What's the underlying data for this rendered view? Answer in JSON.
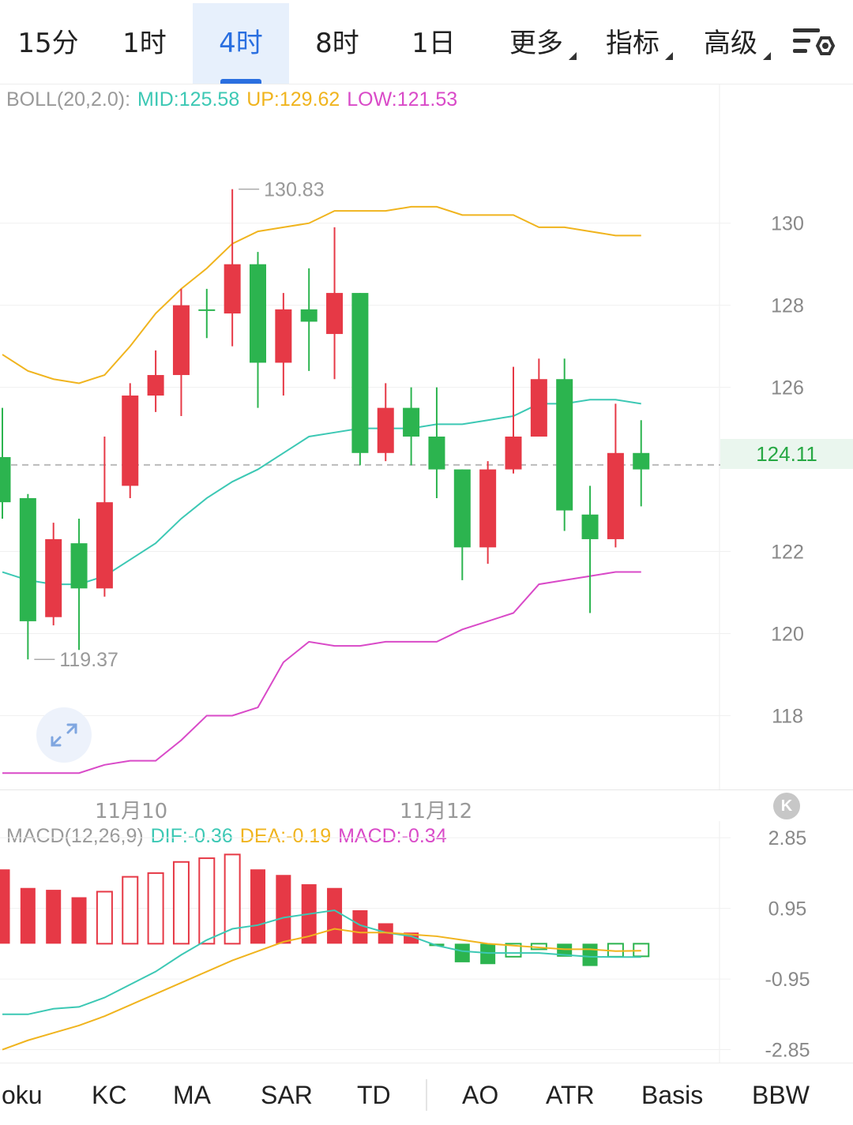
{
  "toolbar": {
    "tabs": [
      {
        "label": "15分"
      },
      {
        "label": "1时"
      },
      {
        "label": "4时",
        "active": true
      },
      {
        "label": "8时"
      },
      {
        "label": "1日"
      },
      {
        "label": "更多",
        "dropdown": true
      },
      {
        "label": "指标",
        "dropdown": true
      },
      {
        "label": "高级",
        "dropdown": true
      }
    ],
    "settings_icon": "chart-settings-icon"
  },
  "boll_legend": {
    "name": "BOLL(20,2.0):",
    "mid": "MID:125.58",
    "up": "UP:129.62",
    "low": "LOW:121.53"
  },
  "macd_legend": {
    "name": "MACD(12,26,9)",
    "dif": "DIF:-0.36",
    "dea": "DEA:-0.19",
    "macd": "MACD:-0.34"
  },
  "price_axis": [
    "130",
    "128",
    "126",
    "124.11",
    "122",
    "120",
    "118"
  ],
  "current_price": "124.11",
  "macd_axis": [
    "2.85",
    "0.95",
    "-0.95",
    "-2.85"
  ],
  "date_labels": [
    "11月10",
    "11月12"
  ],
  "indicators": [
    "oku",
    "KC",
    "MA",
    "SAR",
    "TD",
    "AO",
    "ATR",
    "Basis",
    "BBW"
  ],
  "colors": {
    "up": "#e63946",
    "down": "#2cb44f",
    "mid": "#3cc8b4",
    "upper": "#f0b41e",
    "lower": "#d94ac8",
    "accent": "#2a6fe0"
  },
  "chart_data": [
    {
      "type": "candlestick",
      "title": "BOLL(20,2.0)",
      "ylim": [
        116.2,
        133.4
      ],
      "yticks": [
        130,
        128,
        126,
        122,
        120,
        118
      ],
      "current_price": 124.11,
      "annotations": [
        {
          "label": "130.83",
          "value": 130.83
        },
        {
          "label": "119.37",
          "value": 119.37
        }
      ],
      "candles": [
        {
          "o": 124.3,
          "c": 123.2,
          "h": 125.5,
          "l": 122.8
        },
        {
          "o": 123.3,
          "c": 120.3,
          "h": 123.4,
          "l": 119.37
        },
        {
          "o": 120.4,
          "c": 122.3,
          "h": 122.7,
          "l": 120.2
        },
        {
          "o": 122.2,
          "c": 121.1,
          "h": 122.8,
          "l": 119.6
        },
        {
          "o": 121.1,
          "c": 123.2,
          "h": 124.8,
          "l": 120.9
        },
        {
          "o": 123.6,
          "c": 125.8,
          "h": 126.1,
          "l": 123.3
        },
        {
          "o": 125.8,
          "c": 126.3,
          "h": 126.9,
          "l": 125.4
        },
        {
          "o": 126.3,
          "c": 128.0,
          "h": 128.4,
          "l": 125.3
        },
        {
          "o": 127.9,
          "c": 127.9,
          "h": 128.4,
          "l": 127.2
        },
        {
          "o": 127.8,
          "c": 129.0,
          "h": 130.83,
          "l": 127.0
        },
        {
          "o": 129.0,
          "c": 126.6,
          "h": 129.3,
          "l": 125.5
        },
        {
          "o": 126.6,
          "c": 127.9,
          "h": 128.3,
          "l": 125.8
        },
        {
          "o": 127.9,
          "c": 127.6,
          "h": 128.9,
          "l": 126.4
        },
        {
          "o": 127.3,
          "c": 128.3,
          "h": 129.9,
          "l": 126.2
        },
        {
          "o": 128.3,
          "c": 124.4,
          "h": 128.3,
          "l": 124.1
        },
        {
          "o": 124.4,
          "c": 125.5,
          "h": 126.1,
          "l": 124.2
        },
        {
          "o": 125.5,
          "c": 124.8,
          "h": 126.0,
          "l": 124.1
        },
        {
          "o": 124.8,
          "c": 124.0,
          "h": 126.0,
          "l": 123.3
        },
        {
          "o": 124.0,
          "c": 122.1,
          "h": 124.0,
          "l": 121.3
        },
        {
          "o": 122.1,
          "c": 124.0,
          "h": 124.2,
          "l": 121.7
        },
        {
          "o": 124.0,
          "c": 124.8,
          "h": 126.5,
          "l": 123.9
        },
        {
          "o": 124.8,
          "c": 126.2,
          "h": 126.7,
          "l": 124.8
        },
        {
          "o": 126.2,
          "c": 123.0,
          "h": 126.7,
          "l": 122.5
        },
        {
          "o": 122.9,
          "c": 122.3,
          "h": 123.6,
          "l": 120.5
        },
        {
          "o": 122.3,
          "c": 124.4,
          "h": 125.6,
          "l": 122.1
        },
        {
          "o": 124.4,
          "c": 124.0,
          "h": 125.2,
          "l": 123.1
        }
      ],
      "series": [
        {
          "name": "UP",
          "color": "#f0b41e",
          "values": [
            126.8,
            126.4,
            126.2,
            126.1,
            126.3,
            127.0,
            127.8,
            128.4,
            128.9,
            129.5,
            129.8,
            129.9,
            130.0,
            130.3,
            130.3,
            130.3,
            130.4,
            130.4,
            130.2,
            130.2,
            130.2,
            129.9,
            129.9,
            129.8,
            129.7,
            129.7
          ]
        },
        {
          "name": "MID",
          "color": "#3cc8b4",
          "values": [
            121.5,
            121.3,
            121.2,
            121.2,
            121.4,
            121.8,
            122.2,
            122.8,
            123.3,
            123.7,
            124.0,
            124.4,
            124.8,
            124.9,
            125.0,
            125.0,
            125.0,
            125.1,
            125.1,
            125.2,
            125.3,
            125.6,
            125.6,
            125.7,
            125.7,
            125.6
          ]
        },
        {
          "name": "LOW",
          "color": "#d94ac8",
          "values": [
            116.6,
            116.6,
            116.6,
            116.6,
            116.8,
            116.9,
            116.9,
            117.4,
            118.0,
            118.0,
            118.2,
            119.3,
            119.8,
            119.7,
            119.7,
            119.8,
            119.8,
            119.8,
            120.1,
            120.3,
            120.5,
            121.2,
            121.3,
            121.4,
            121.5,
            121.5
          ]
        }
      ]
    },
    {
      "type": "bar",
      "title": "MACD(12,26,9)",
      "ylim": [
        -3.2,
        3.3
      ],
      "yticks": [
        2.85,
        0.95,
        -0.95,
        -2.85
      ],
      "hist": [
        2.0,
        1.5,
        1.45,
        1.25,
        1.4,
        1.8,
        1.9,
        2.2,
        2.3,
        2.4,
        2.0,
        1.85,
        1.6,
        1.5,
        0.9,
        0.55,
        0.3,
        -0.05,
        -0.5,
        -0.55,
        -0.35,
        -0.15,
        -0.35,
        -0.6,
        -0.35,
        -0.34
      ],
      "hist_solid": [
        true,
        true,
        true,
        true,
        false,
        false,
        false,
        false,
        false,
        false,
        true,
        true,
        true,
        true,
        true,
        true,
        true,
        true,
        true,
        true,
        false,
        false,
        true,
        true,
        false,
        false
      ],
      "series": [
        {
          "name": "DIF",
          "color": "#3cc8b4",
          "values": [
            -1.9,
            -1.9,
            -1.75,
            -1.7,
            -1.45,
            -1.1,
            -0.75,
            -0.3,
            0.1,
            0.4,
            0.5,
            0.7,
            0.8,
            0.9,
            0.5,
            0.3,
            0.2,
            -0.05,
            -0.2,
            -0.25,
            -0.25,
            -0.25,
            -0.3,
            -0.35,
            -0.36,
            -0.36
          ]
        },
        {
          "name": "DEA",
          "color": "#f0b41e",
          "values": [
            -2.85,
            -2.6,
            -2.4,
            -2.2,
            -1.95,
            -1.65,
            -1.35,
            -1.05,
            -0.75,
            -0.45,
            -0.2,
            0.05,
            0.2,
            0.4,
            0.3,
            0.3,
            0.25,
            0.2,
            0.1,
            0.0,
            -0.05,
            -0.1,
            -0.15,
            -0.15,
            -0.2,
            -0.19
          ]
        }
      ]
    }
  ]
}
